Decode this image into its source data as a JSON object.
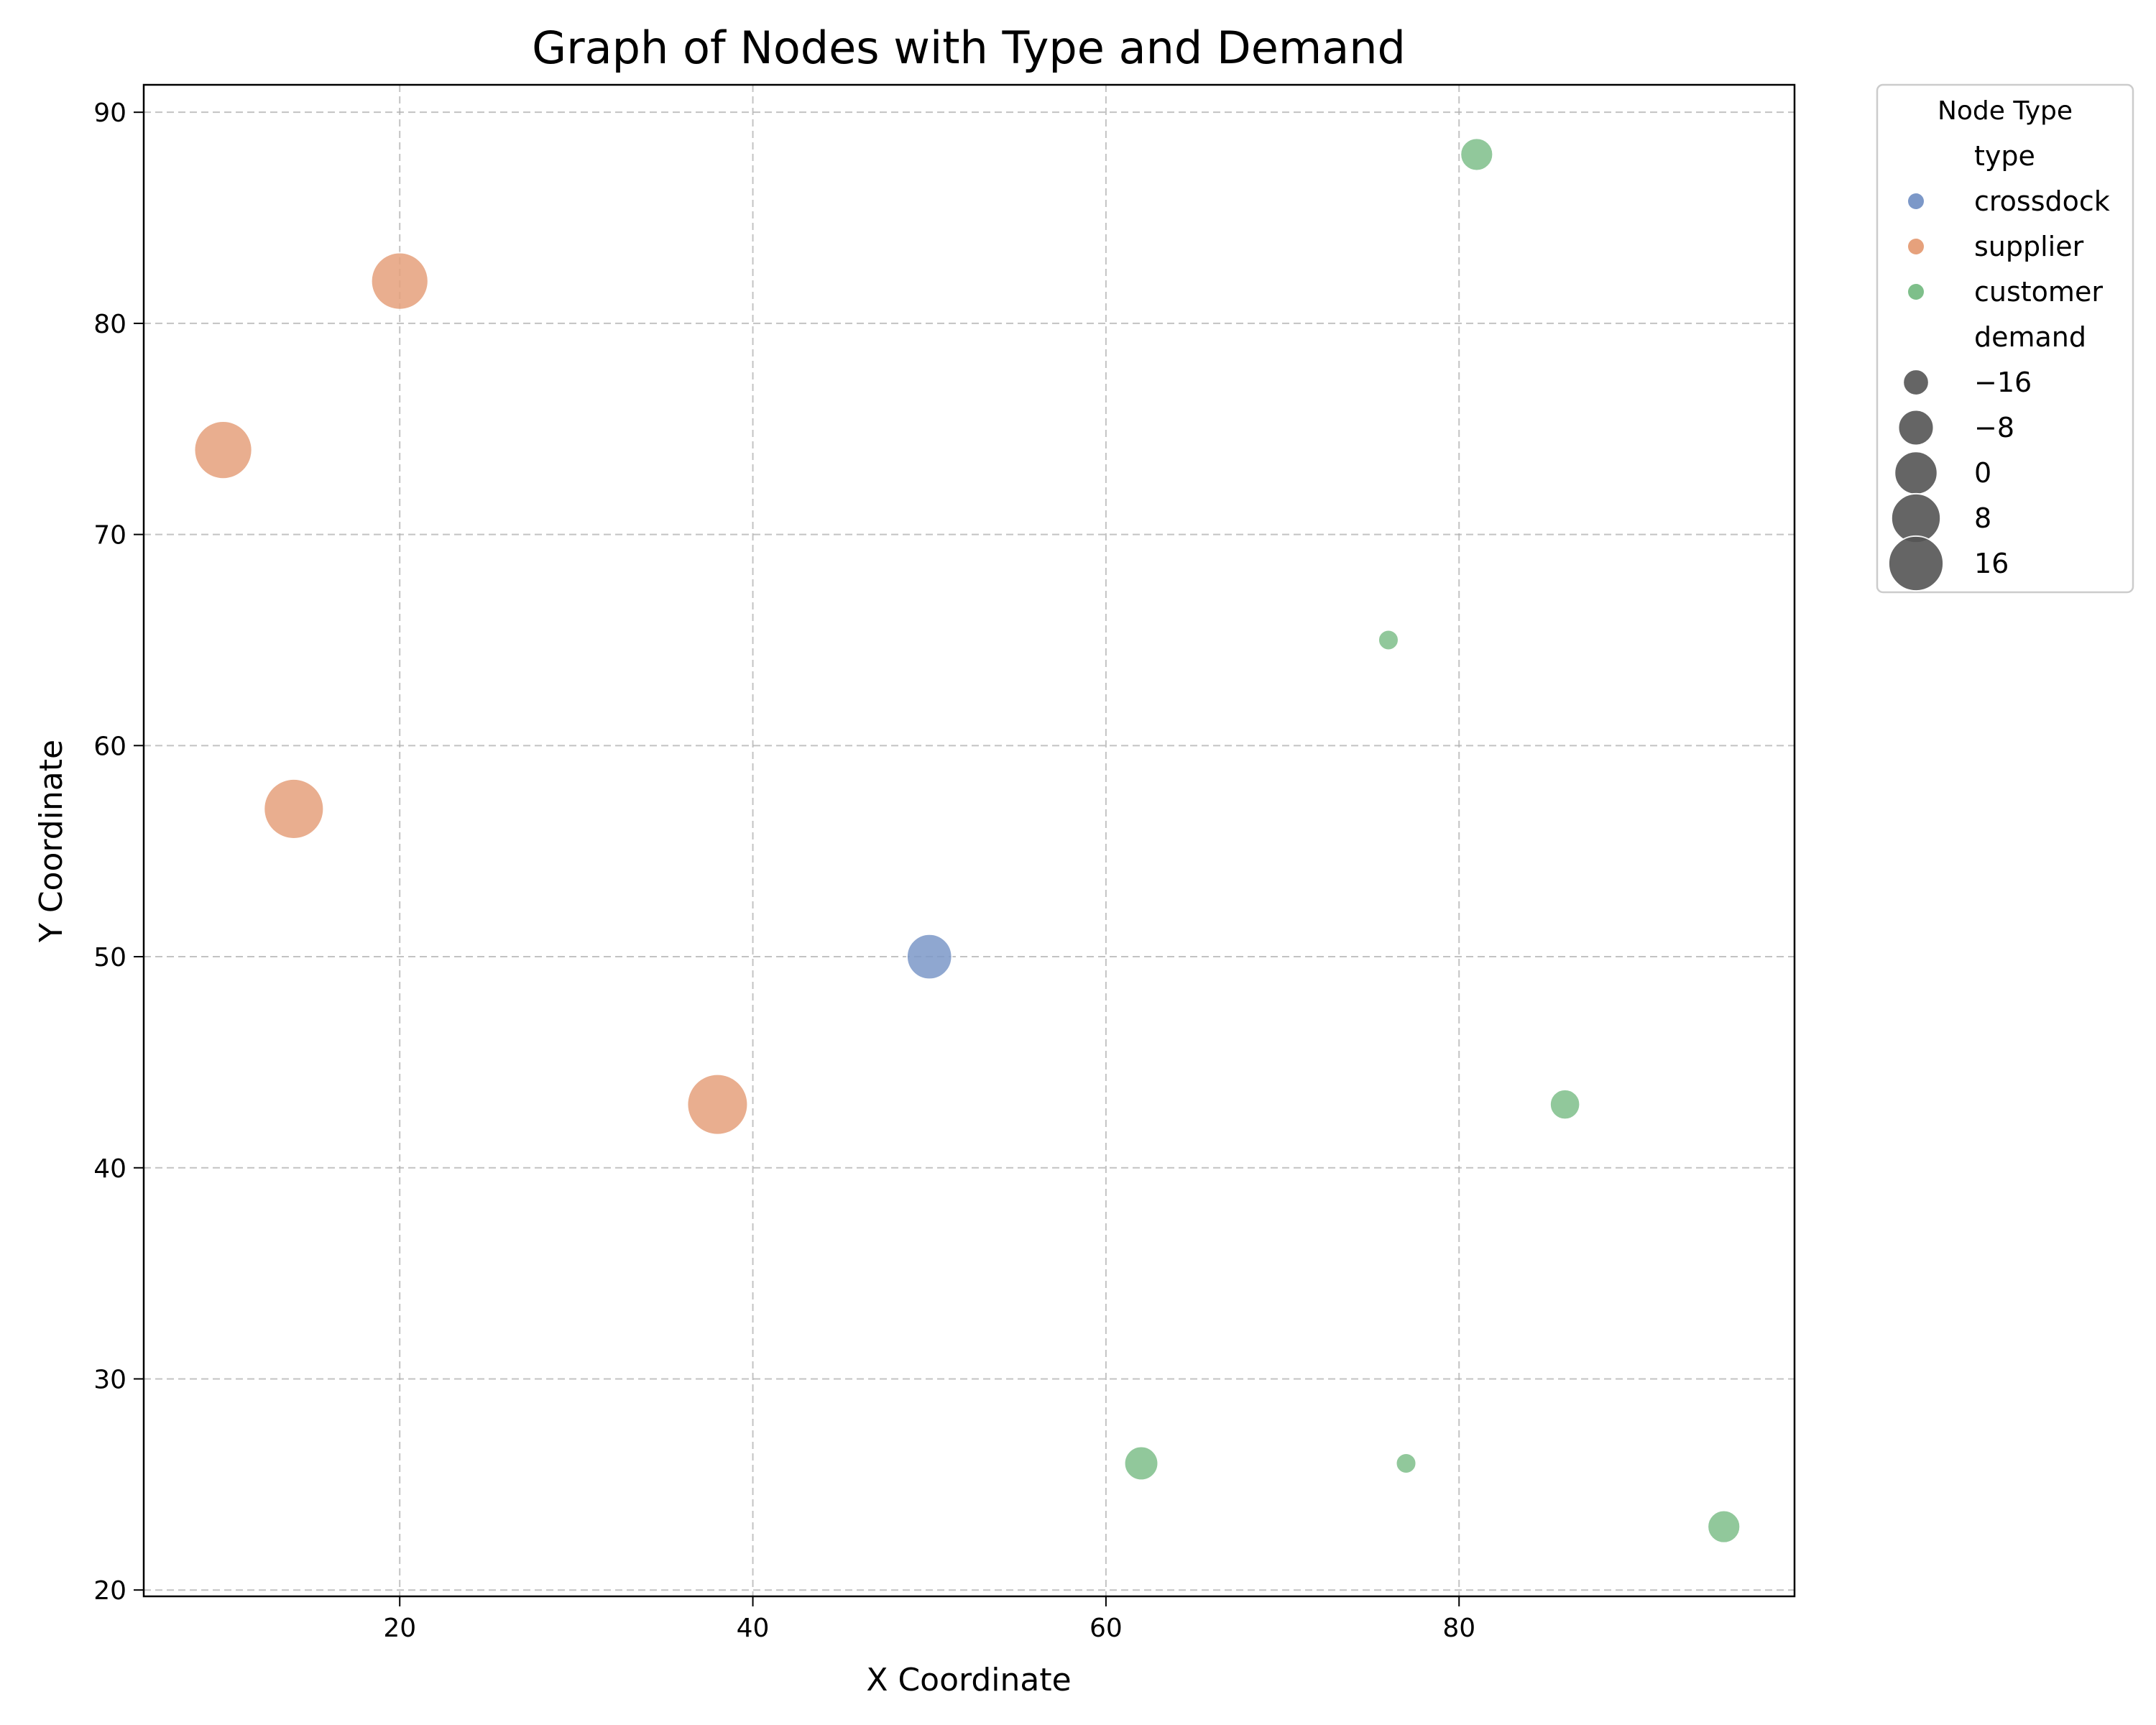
{
  "chart_data": {
    "type": "scatter",
    "title": "Graph of Nodes with Type and Demand",
    "xlabel": "X Coordinate",
    "ylabel": "Y Coordinate",
    "xlim": [
      5.5,
      99
    ],
    "ylim": [
      19.7,
      91.3
    ],
    "xticks": [
      20,
      40,
      60,
      80
    ],
    "yticks": [
      20,
      30,
      40,
      50,
      60,
      70,
      80,
      90
    ],
    "grid": true,
    "legend": {
      "title": "Node Type",
      "placement": "outside-top-right",
      "hue_header": "type",
      "size_header": "demand",
      "hue_entries": [
        {
          "name": "crossdock",
          "color": "#7c98c8"
        },
        {
          "name": "supplier",
          "color": "#e6a17c"
        },
        {
          "name": "customer",
          "color": "#7ebf8a"
        }
      ],
      "size_entries": [
        {
          "label": "−16",
          "value": -16
        },
        {
          "label": "−8",
          "value": -8
        },
        {
          "label": "0",
          "value": 0
        },
        {
          "label": "8",
          "value": 8
        },
        {
          "label": "16",
          "value": 16
        }
      ]
    },
    "size_range": {
      "min_demand": -20,
      "max_demand": 20
    },
    "points": [
      {
        "x": 50,
        "y": 50,
        "type": "crossdock",
        "demand": 0
      },
      {
        "x": 20,
        "y": 82,
        "type": "supplier",
        "demand": 15
      },
      {
        "x": 10,
        "y": 74,
        "type": "supplier",
        "demand": 16
      },
      {
        "x": 14,
        "y": 57,
        "type": "supplier",
        "demand": 19
      },
      {
        "x": 38,
        "y": 43,
        "type": "supplier",
        "demand": 20
      },
      {
        "x": 81,
        "y": 88,
        "type": "customer",
        "demand": -12
      },
      {
        "x": 76,
        "y": 65,
        "type": "customer",
        "demand": -20
      },
      {
        "x": 86,
        "y": 43,
        "type": "customer",
        "demand": -14
      },
      {
        "x": 62,
        "y": 26,
        "type": "customer",
        "demand": -11
      },
      {
        "x": 77,
        "y": 26,
        "type": "customer",
        "demand": -20
      },
      {
        "x": 95,
        "y": 23,
        "type": "customer",
        "demand": -12
      }
    ]
  }
}
